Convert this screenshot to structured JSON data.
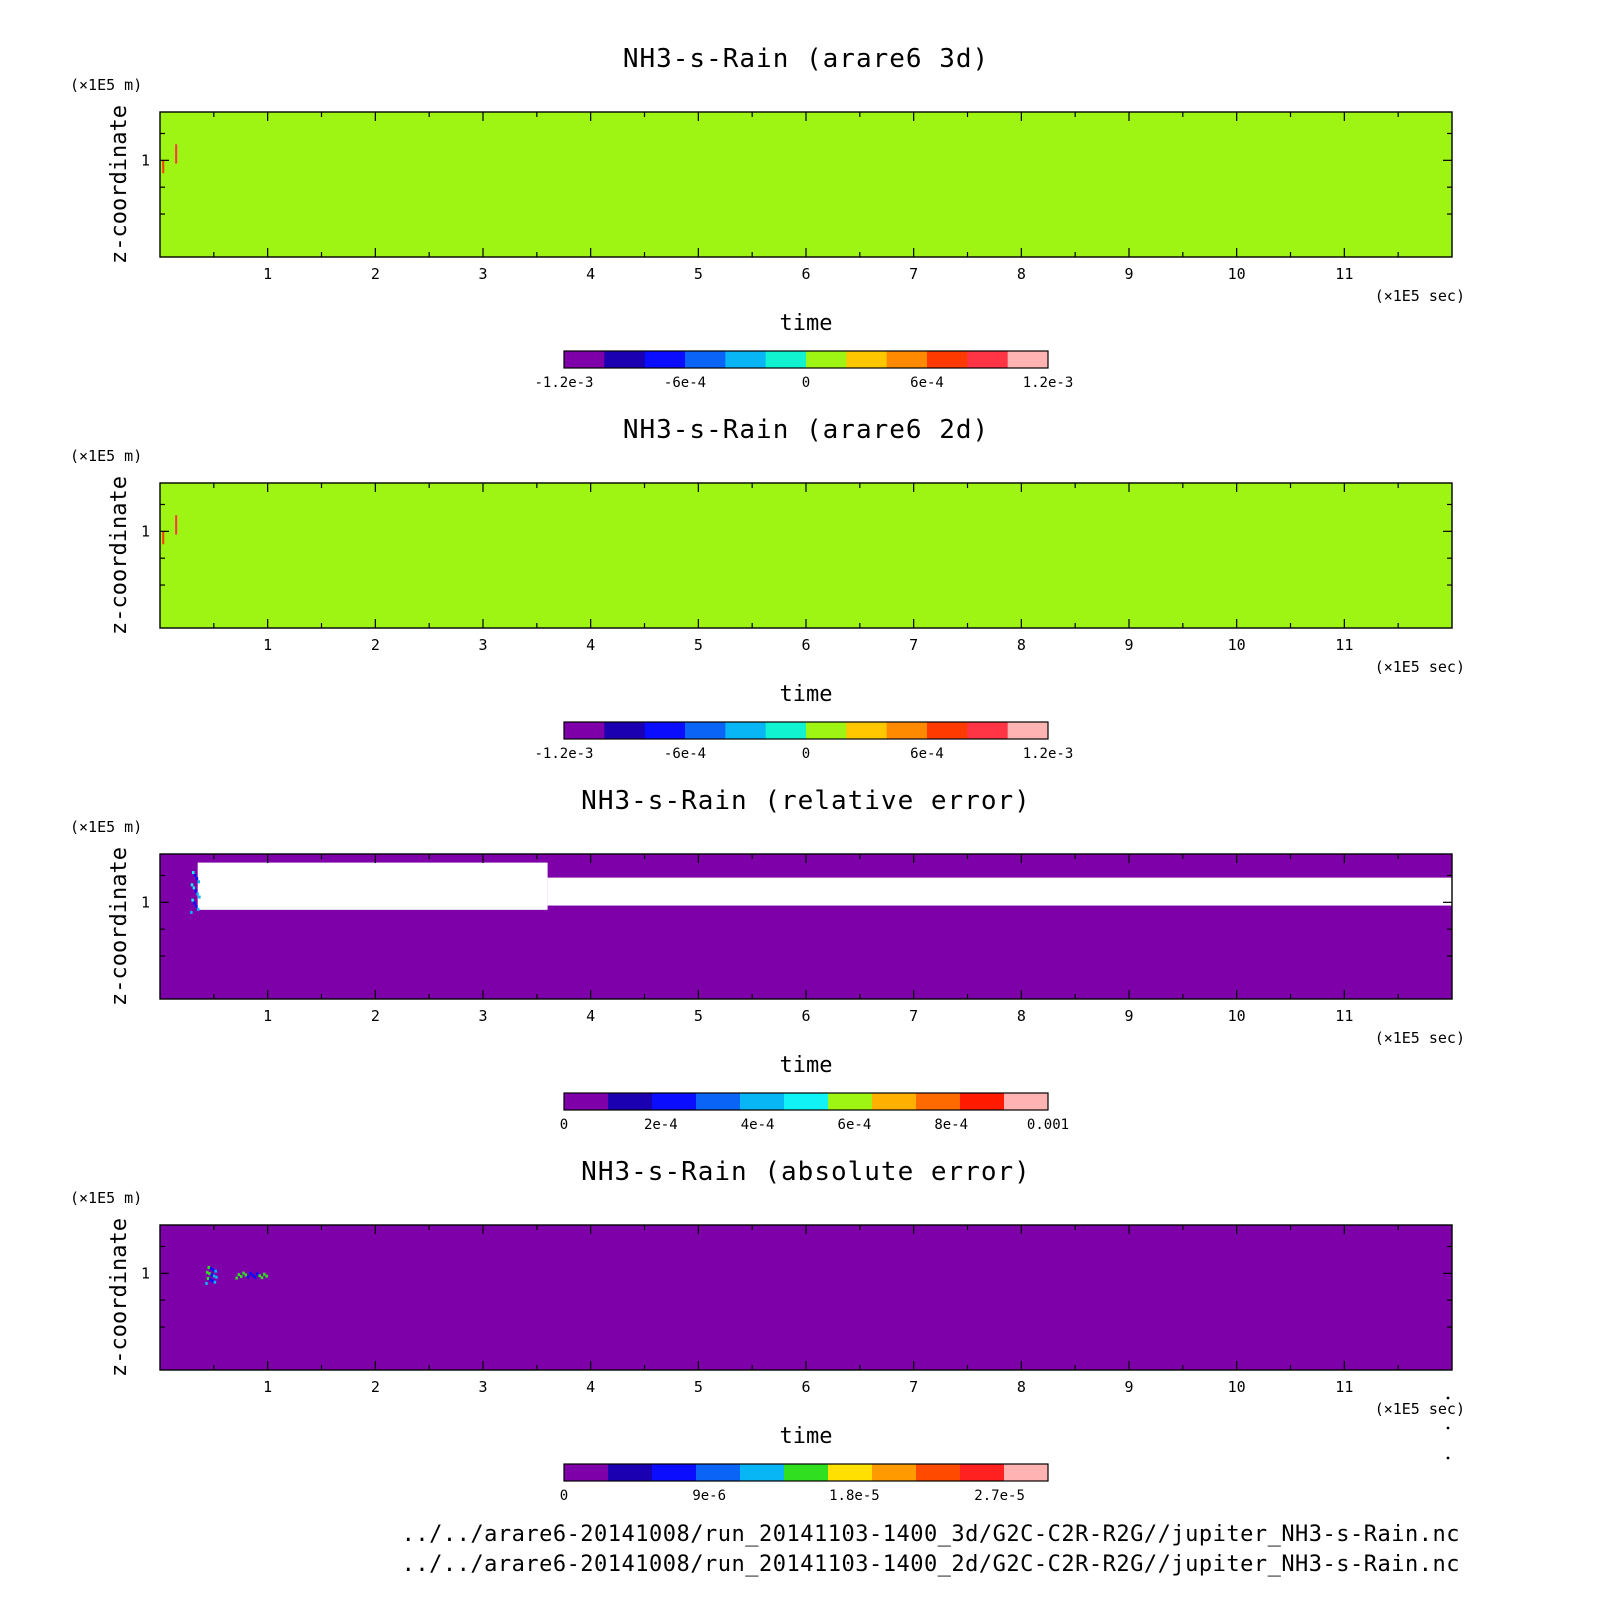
{
  "chart_data": [
    {
      "type": "heatmap",
      "title": "NH3-s-Rain (arare6 3d)",
      "xlabel": "time",
      "ylabel": "z-coordinate",
      "x_unit": "(×1E5 sec)",
      "y_unit": "(×1E5 m)",
      "x_ticks": [
        "1",
        "2",
        "3",
        "4",
        "5",
        "6",
        "7",
        "8",
        "9",
        "10",
        "11"
      ],
      "y_ticks": [
        "1"
      ],
      "xlim": [
        0,
        12
      ],
      "ylim": [
        0.1,
        1.45
      ],
      "background_value": 0,
      "features": [
        {
          "kind": "filament",
          "x": 0.03,
          "y0": 0.88,
          "y1": 1.0,
          "value": 0.0007
        },
        {
          "kind": "filament",
          "x": 0.15,
          "y0": 0.97,
          "y1": 1.15,
          "value": 0.0008
        }
      ],
      "colorbar": {
        "min": -0.0012,
        "max": 0.0012,
        "colors": [
          "#7d00a8",
          "#1a00b0",
          "#0a0dff",
          "#0a64f5",
          "#08b6f5",
          "#10f2d0",
          "#9ef514",
          "#ffc700",
          "#ff8a00",
          "#ff3a00",
          "#ff3545",
          "#ffb3b3"
        ],
        "tick_values": [
          -0.0012,
          -0.0006,
          0,
          0.0006,
          0.0012
        ],
        "labels": [
          "-1.2e-3",
          "-6e-4",
          "0",
          "6e-4",
          "1.2e-3"
        ]
      }
    },
    {
      "type": "heatmap",
      "title": "NH3-s-Rain (arare6 2d)",
      "xlabel": "time",
      "ylabel": "z-coordinate",
      "x_unit": "(×1E5 sec)",
      "y_unit": "(×1E5 m)",
      "x_ticks": [
        "1",
        "2",
        "3",
        "4",
        "5",
        "6",
        "7",
        "8",
        "9",
        "10",
        "11"
      ],
      "y_ticks": [
        "1"
      ],
      "xlim": [
        0,
        12
      ],
      "ylim": [
        0.1,
        1.45
      ],
      "background_value": 0,
      "features": [
        {
          "kind": "filament",
          "x": 0.03,
          "y0": 0.88,
          "y1": 1.0,
          "value": 0.0007
        },
        {
          "kind": "filament",
          "x": 0.15,
          "y0": 0.97,
          "y1": 1.15,
          "value": 0.0008
        }
      ],
      "colorbar": {
        "min": -0.0012,
        "max": 0.0012,
        "colors": [
          "#7d00a8",
          "#1a00b0",
          "#0a0dff",
          "#0a64f5",
          "#08b6f5",
          "#10f2d0",
          "#9ef514",
          "#ffc700",
          "#ff8a00",
          "#ff3a00",
          "#ff3545",
          "#ffb3b3"
        ],
        "tick_values": [
          -0.0012,
          -0.0006,
          0,
          0.0006,
          0.0012
        ],
        "labels": [
          "-1.2e-3",
          "-6e-4",
          "0",
          "6e-4",
          "1.2e-3"
        ]
      }
    },
    {
      "type": "heatmap",
      "title": "NH3-s-Rain (relative error)",
      "xlabel": "time",
      "ylabel": "z-coordinate",
      "x_unit": "(×1E5 sec)",
      "y_unit": "(×1E5 m)",
      "x_ticks": [
        "1",
        "2",
        "3",
        "4",
        "5",
        "6",
        "7",
        "8",
        "9",
        "10",
        "11"
      ],
      "y_ticks": [
        "1"
      ],
      "xlim": [
        0,
        12
      ],
      "ylim": [
        0.1,
        1.45
      ],
      "background_value": 0,
      "features": [
        {
          "kind": "undefined_band",
          "x0": 0.35,
          "x1": 3.6,
          "y0": 0.93,
          "y1": 1.37
        },
        {
          "kind": "undefined_band",
          "x0": 3.6,
          "x1": 12.0,
          "y0": 0.97,
          "y1": 1.23
        },
        {
          "kind": "speckle",
          "x0": 0.28,
          "x1": 0.36,
          "y0": 0.92,
          "y1": 1.32,
          "value": 0.0004
        }
      ],
      "colorbar": {
        "min": 0,
        "max": 0.001,
        "colors": [
          "#7d00a8",
          "#1a00b0",
          "#0a0dff",
          "#0a64f5",
          "#08b6f5",
          "#10f2f5",
          "#9ef514",
          "#ffb000",
          "#ff6a00",
          "#ff1a00",
          "#ffb3b3"
        ],
        "tick_values": [
          0,
          0.0002,
          0.0004,
          0.0006,
          0.0008,
          0.001
        ],
        "labels": [
          "0",
          "2e-4",
          "4e-4",
          "6e-4",
          "8e-4",
          "0.001"
        ]
      }
    },
    {
      "type": "heatmap",
      "title": "NH3-s-Rain (absolute error)",
      "xlabel": "time",
      "ylabel": "z-coordinate",
      "x_unit": "(×1E5 sec)",
      "y_unit": "(×1E5 m)",
      "x_ticks": [
        "1",
        "2",
        "3",
        "4",
        "5",
        "6",
        "7",
        "8",
        "9",
        "10",
        "11"
      ],
      "y_ticks": [
        "1"
      ],
      "xlim": [
        0,
        12
      ],
      "ylim": [
        0.1,
        1.45
      ],
      "background_value": 0,
      "features": [
        {
          "kind": "speckle",
          "x0": 0.42,
          "x1": 0.52,
          "y0": 0.92,
          "y1": 1.08,
          "value": 1.2e-05
        },
        {
          "kind": "speckle",
          "x0": 0.7,
          "x1": 1.0,
          "y0": 0.97,
          "y1": 1.02,
          "value": 1.5e-05
        }
      ],
      "colorbar": {
        "min": 0,
        "max": 3e-05,
        "colors": [
          "#7d00a8",
          "#1a00b0",
          "#0a0dff",
          "#0a64f5",
          "#08b6f5",
          "#30e020",
          "#ffe000",
          "#ff9a00",
          "#ff4a00",
          "#ff2020",
          "#ffb3b3"
        ],
        "tick_values": [
          0,
          9e-06,
          1.8e-05,
          2.7e-05
        ],
        "labels": [
          "0",
          "9e-6",
          "1.8e-5",
          "2.7e-5"
        ]
      }
    }
  ],
  "footer": {
    "line1": "../../arare6-20141008/run_20141103-1400_3d/G2C-C2R-R2G//jupiter_NH3-s-Rain.nc",
    "line2": "../../arare6-20141008/run_20141103-1400_2d/G2C-C2R-R2G//jupiter_NH3-s-Rain.nc"
  }
}
